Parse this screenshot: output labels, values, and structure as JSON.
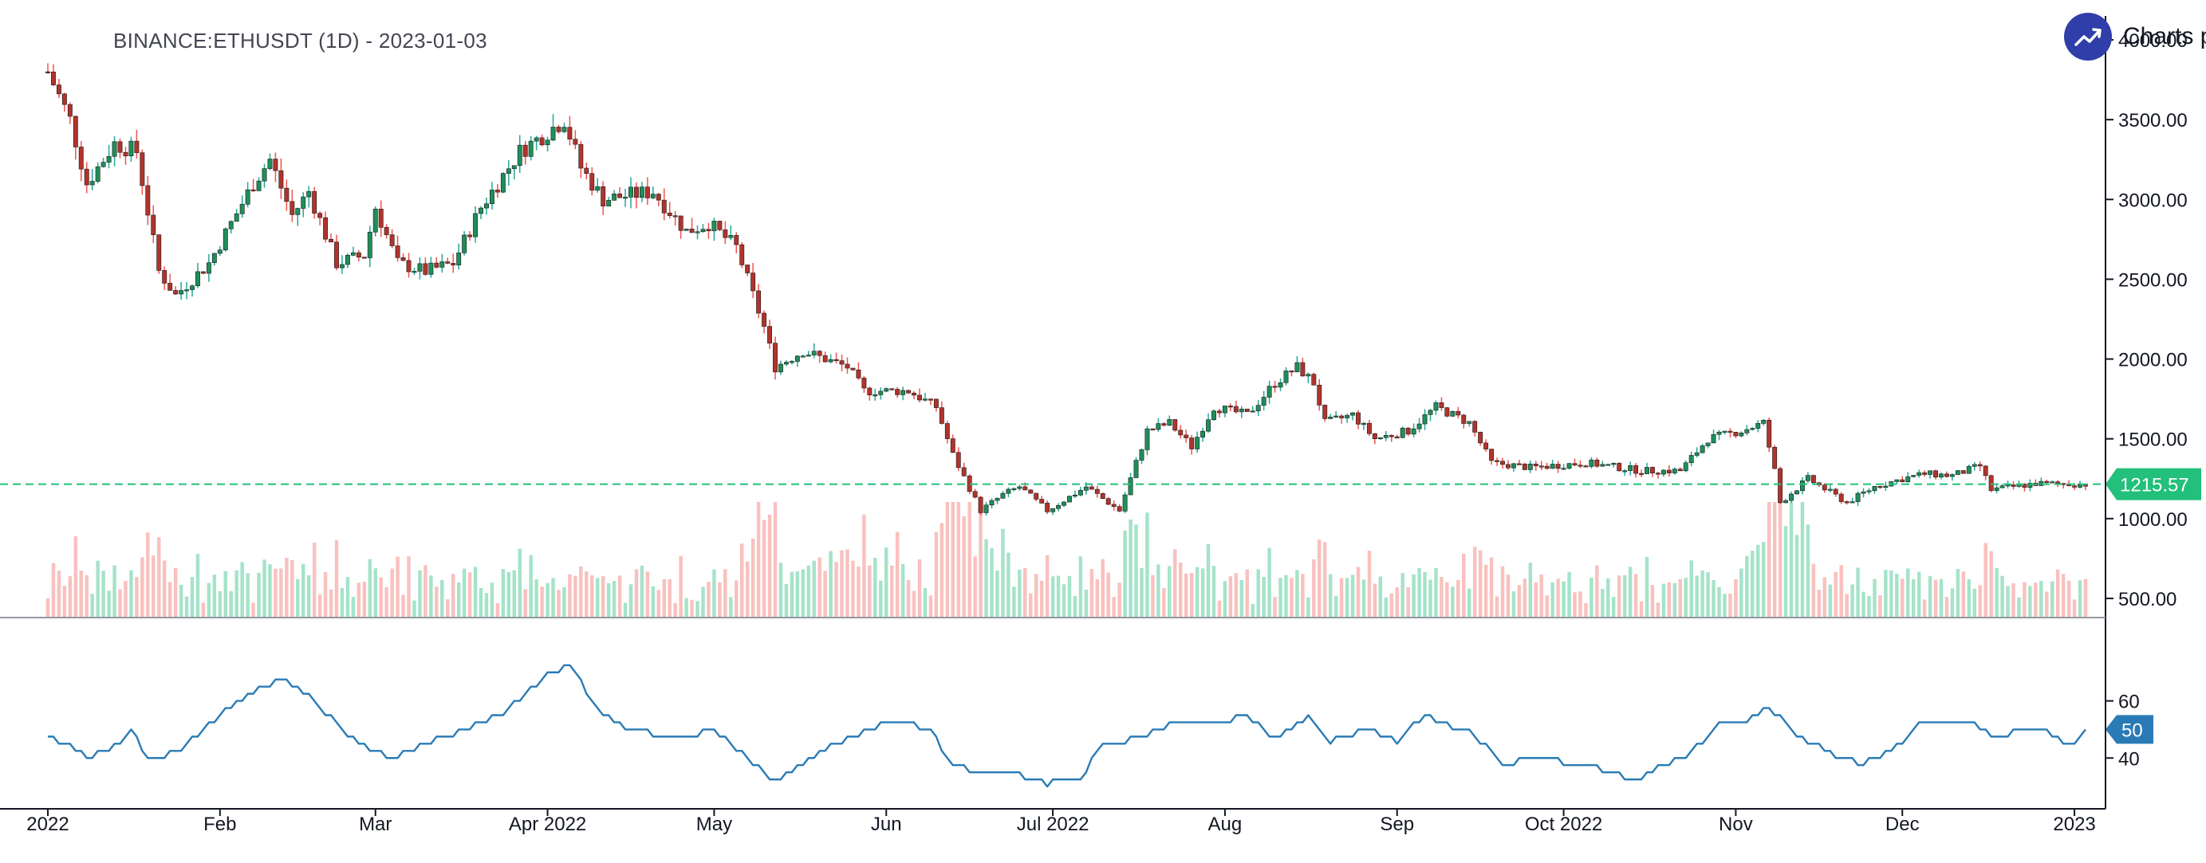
{
  "header": {
    "title": "BINANCE:ETHUSDT (1D) - 2023-01-03",
    "brand_text": "Charts p"
  },
  "colors": {
    "up": "#26a69a",
    "up_body": "#1e8f5a",
    "down": "#ef5350",
    "down_body": "#b2332c",
    "vol_up": "#a5e3c9",
    "vol_down": "#f8c1bf",
    "price_line": "#22c07a",
    "indicator": "#2a7bb5"
  },
  "chart_data": [
    {
      "type": "candlestick",
      "title": "BINANCE:ETHUSDT (1D) - 2023-01-03",
      "x_labels": [
        "2022",
        "Feb",
        "Mar",
        "Apr 2022",
        "May",
        "Jun",
        "Jul 2022",
        "Aug",
        "Sep",
        "Oct 2022",
        "Nov",
        "Dec",
        "2023"
      ],
      "y_ticks": [
        "4000.00",
        "3500.00",
        "3000.00",
        "2500.00",
        "2000.00",
        "1500.00",
        "1000.00",
        "500.00"
      ],
      "ylim": [
        380,
        4050
      ],
      "last_price": 1215.57,
      "last_price_label": "1215.57",
      "anchor_closes": [
        [
          "2022-01-01",
          3800
        ],
        [
          "2022-01-05",
          3500
        ],
        [
          "2022-01-08",
          3100
        ],
        [
          "2022-01-13",
          3350
        ],
        [
          "2022-01-17",
          3300
        ],
        [
          "2022-01-21",
          2550
        ],
        [
          "2022-01-24",
          2400
        ],
        [
          "2022-01-30",
          2600
        ],
        [
          "2022-02-07",
          3100
        ],
        [
          "2022-02-10",
          3250
        ],
        [
          "2022-02-14",
          2900
        ],
        [
          "2022-02-17",
          3050
        ],
        [
          "2022-02-22",
          2600
        ],
        [
          "2022-02-27",
          2650
        ],
        [
          "2022-03-01",
          2950
        ],
        [
          "2022-03-05",
          2600
        ],
        [
          "2022-03-10",
          2550
        ],
        [
          "2022-03-15",
          2600
        ],
        [
          "2022-03-20",
          2950
        ],
        [
          "2022-03-27",
          3300
        ],
        [
          "2022-04-02",
          3450
        ],
        [
          "2022-04-04",
          3500
        ],
        [
          "2022-04-07",
          3200
        ],
        [
          "2022-04-11",
          3000
        ],
        [
          "2022-04-20",
          3050
        ],
        [
          "2022-04-26",
          2800
        ],
        [
          "2022-04-30",
          2850
        ],
        [
          "2022-05-05",
          2700
        ],
        [
          "2022-05-10",
          2200
        ],
        [
          "2022-05-12",
          1950
        ],
        [
          "2022-05-17",
          2050
        ],
        [
          "2022-05-25",
          1950
        ],
        [
          "2022-05-28",
          1800
        ],
        [
          "2022-06-01",
          1800
        ],
        [
          "2022-06-05",
          1800
        ],
        [
          "2022-06-10",
          1700
        ],
        [
          "2022-06-13",
          1400
        ],
        [
          "2022-06-18",
          1050
        ],
        [
          "2022-06-22",
          1150
        ],
        [
          "2022-06-25",
          1200
        ],
        [
          "2022-06-30",
          1050
        ],
        [
          "2022-07-07",
          1200
        ],
        [
          "2022-07-13",
          1050
        ],
        [
          "2022-07-18",
          1550
        ],
        [
          "2022-07-22",
          1600
        ],
        [
          "2022-07-26",
          1450
        ],
        [
          "2022-07-30",
          1700
        ],
        [
          "2022-08-05",
          1650
        ],
        [
          "2022-08-10",
          1850
        ],
        [
          "2022-08-14",
          1950
        ],
        [
          "2022-08-17",
          1850
        ],
        [
          "2022-08-19",
          1600
        ],
        [
          "2022-08-24",
          1650
        ],
        [
          "2022-08-28",
          1500
        ],
        [
          "2022-09-03",
          1550
        ],
        [
          "2022-09-08",
          1700
        ],
        [
          "2022-09-14",
          1600
        ],
        [
          "2022-09-18",
          1350
        ],
        [
          "2022-09-25",
          1320
        ],
        [
          "2022-10-05",
          1350
        ],
        [
          "2022-10-15",
          1300
        ],
        [
          "2022-10-22",
          1300
        ],
        [
          "2022-10-27",
          1500
        ],
        [
          "2022-11-02",
          1550
        ],
        [
          "2022-11-06",
          1600
        ],
        [
          "2022-11-08",
          1300
        ],
        [
          "2022-11-09",
          1100
        ],
        [
          "2022-11-14",
          1250
        ],
        [
          "2022-11-21",
          1100
        ],
        [
          "2022-11-26",
          1200
        ],
        [
          "2022-12-01",
          1250
        ],
        [
          "2022-12-05",
          1280
        ],
        [
          "2022-12-10",
          1270
        ],
        [
          "2022-12-15",
          1330
        ],
        [
          "2022-12-17",
          1180
        ],
        [
          "2022-12-25",
          1220
        ],
        [
          "2023-01-03",
          1215.57
        ]
      ]
    },
    {
      "type": "line",
      "y_ticks": [
        "60",
        "40"
      ],
      "ylim": [
        25,
        85
      ],
      "last_value_label": "50",
      "anchor_values": [
        [
          "2022-01-01",
          47
        ],
        [
          "2022-01-05",
          44
        ],
        [
          "2022-01-08",
          40
        ],
        [
          "2022-01-13",
          44
        ],
        [
          "2022-01-16",
          50
        ],
        [
          "2022-01-19",
          40
        ],
        [
          "2022-01-24",
          42
        ],
        [
          "2022-02-01",
          55
        ],
        [
          "2022-02-08",
          64
        ],
        [
          "2022-02-12",
          68
        ],
        [
          "2022-02-18",
          60
        ],
        [
          "2022-02-23",
          50
        ],
        [
          "2022-02-28",
          43
        ],
        [
          "2022-03-04",
          40
        ],
        [
          "2022-03-10",
          45
        ],
        [
          "2022-03-17",
          50
        ],
        [
          "2022-03-25",
          57
        ],
        [
          "2022-03-31",
          68
        ],
        [
          "2022-04-05",
          73
        ],
        [
          "2022-04-10",
          57
        ],
        [
          "2022-04-15",
          50
        ],
        [
          "2022-04-25",
          47
        ],
        [
          "2022-05-01",
          50
        ],
        [
          "2022-05-08",
          38
        ],
        [
          "2022-05-12",
          32
        ],
        [
          "2022-05-18",
          40
        ],
        [
          "2022-05-25",
          47
        ],
        [
          "2022-05-31",
          52
        ],
        [
          "2022-06-05",
          53
        ],
        [
          "2022-06-09",
          49
        ],
        [
          "2022-06-13",
          38
        ],
        [
          "2022-06-18",
          35
        ],
        [
          "2022-06-25",
          34
        ],
        [
          "2022-06-30",
          31
        ],
        [
          "2022-07-06",
          33
        ],
        [
          "2022-07-10",
          45
        ],
        [
          "2022-07-17",
          47
        ],
        [
          "2022-07-23",
          53
        ],
        [
          "2022-07-29",
          52
        ],
        [
          "2022-08-05",
          55
        ],
        [
          "2022-08-10",
          47
        ],
        [
          "2022-08-16",
          55
        ],
        [
          "2022-08-20",
          46
        ],
        [
          "2022-08-27",
          50
        ],
        [
          "2022-09-01",
          46
        ],
        [
          "2022-09-06",
          55
        ],
        [
          "2022-09-10",
          52
        ],
        [
          "2022-09-15",
          48
        ],
        [
          "2022-09-20",
          38
        ],
        [
          "2022-09-26",
          40
        ],
        [
          "2022-10-03",
          38
        ],
        [
          "2022-10-08",
          36
        ],
        [
          "2022-10-14",
          32
        ],
        [
          "2022-10-18",
          37
        ],
        [
          "2022-10-24",
          42
        ],
        [
          "2022-10-29",
          52
        ],
        [
          "2022-11-04",
          54
        ],
        [
          "2022-11-07",
          58
        ],
        [
          "2022-11-12",
          48
        ],
        [
          "2022-11-18",
          42
        ],
        [
          "2022-11-23",
          38
        ],
        [
          "2022-11-29",
          42
        ],
        [
          "2022-12-04",
          52
        ],
        [
          "2022-12-08",
          53
        ],
        [
          "2022-12-13",
          53
        ],
        [
          "2022-12-18",
          47
        ],
        [
          "2022-12-22",
          50
        ],
        [
          "2022-12-27",
          50
        ],
        [
          "2022-12-31",
          44
        ],
        [
          "2023-01-03",
          50
        ]
      ]
    }
  ]
}
